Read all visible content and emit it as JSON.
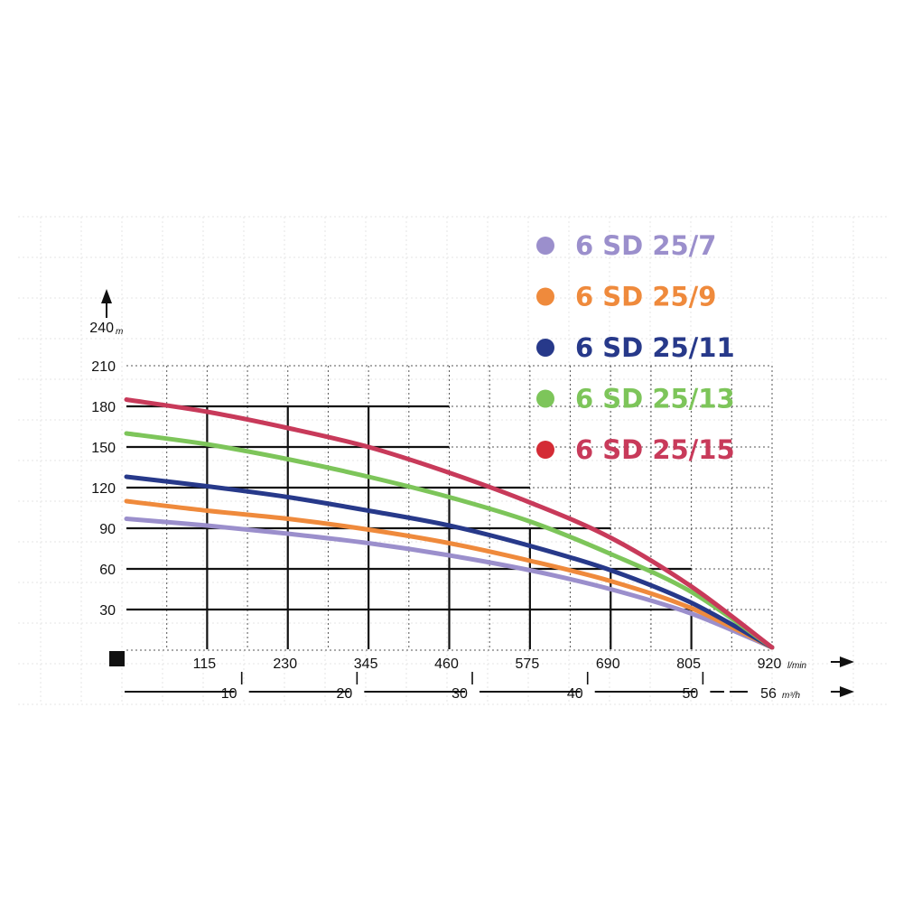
{
  "chart_data": {
    "type": "line",
    "title": "",
    "y_unit": "m",
    "x_unit": "l/min",
    "x2_unit": "m³/h",
    "ylim": [
      0,
      240
    ],
    "xlim": [
      0,
      920
    ],
    "y_ticks": [
      30,
      60,
      90,
      120,
      150,
      180,
      210,
      240
    ],
    "x_ticks": [
      115,
      230,
      345,
      460,
      575,
      690,
      805,
      920
    ],
    "x2_ticks": [
      10,
      20,
      30,
      40,
      50,
      56
    ],
    "grid": true,
    "legend_position": "top-right",
    "series": [
      {
        "name": "6 SD 25/7",
        "color": "#9b8fcc",
        "x": [
          0,
          115,
          230,
          345,
          460,
          575,
          690,
          805,
          920
        ],
        "y": [
          97,
          92,
          86,
          79,
          70,
          59,
          45,
          27,
          2
        ]
      },
      {
        "name": "6 SD 25/9",
        "color": "#ef8a3c",
        "x": [
          0,
          115,
          230,
          345,
          460,
          575,
          690,
          805,
          920
        ],
        "y": [
          110,
          103,
          97,
          89,
          79,
          66,
          51,
          31,
          2
        ]
      },
      {
        "name": "6 SD 25/11",
        "color": "#27398a",
        "x": [
          0,
          115,
          230,
          345,
          460,
          575,
          690,
          805,
          920
        ],
        "y": [
          128,
          121,
          113,
          103,
          92,
          77,
          59,
          35,
          2
        ]
      },
      {
        "name": "6 SD 25/13",
        "color": "#7dc55a",
        "x": [
          0,
          115,
          230,
          345,
          460,
          575,
          690,
          805,
          920
        ],
        "y": [
          160,
          152,
          141,
          128,
          113,
          95,
          71,
          43,
          2
        ]
      },
      {
        "name": "6 SD 25/15",
        "color": "#c83a5a",
        "legend_color": "#d42b35",
        "x": [
          0,
          115,
          230,
          345,
          460,
          575,
          690,
          805,
          920
        ],
        "y": [
          185,
          176,
          164,
          150,
          131,
          109,
          83,
          47,
          2
        ]
      }
    ]
  }
}
